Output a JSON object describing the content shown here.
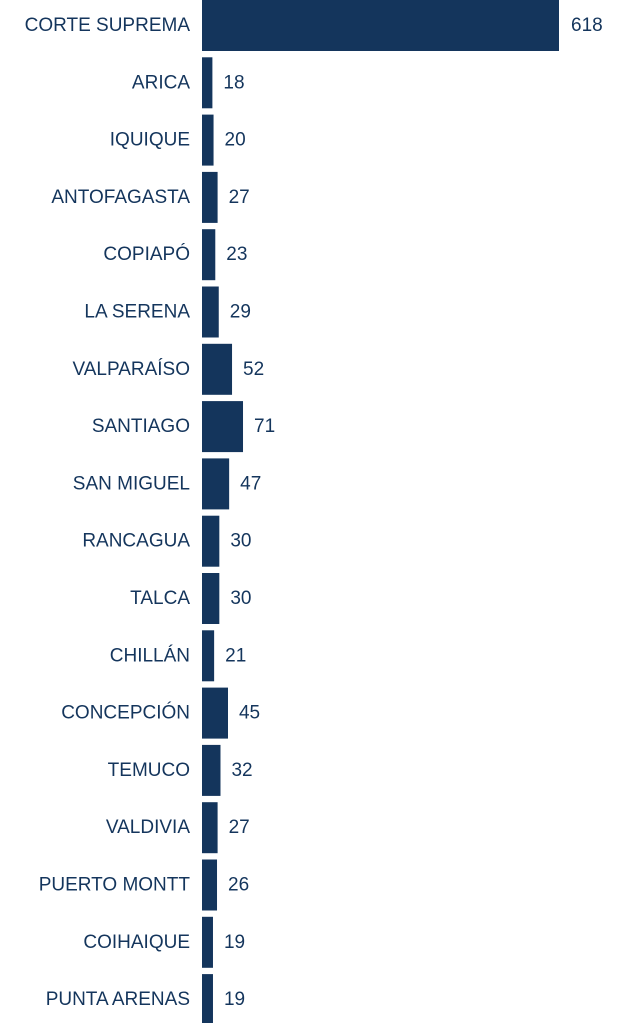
{
  "chart_data": {
    "type": "bar",
    "orientation": "horizontal",
    "categories": [
      "CORTE SUPREMA",
      "ARICA",
      "IQUIQUE",
      "ANTOFAGASTA",
      "COPIAPÓ",
      "LA SERENA",
      "VALPARAÍSO",
      "SANTIAGO",
      "SAN MIGUEL",
      "RANCAGUA",
      "TALCA",
      "CHILLÁN",
      "CONCEPCIÓN",
      "TEMUCO",
      "VALDIVIA",
      "PUERTO MONTT",
      "COIHAIQUE",
      "PUNTA ARENAS"
    ],
    "values": [
      618,
      18,
      20,
      27,
      23,
      29,
      52,
      71,
      47,
      30,
      30,
      21,
      45,
      32,
      27,
      26,
      19,
      19
    ],
    "title": "",
    "xlabel": "",
    "ylabel": "",
    "xlim": [
      0,
      618
    ],
    "grid": false,
    "legend": "none",
    "colors": {
      "bar": "#14355c",
      "text": "#14355c",
      "background": "#ffffff"
    }
  }
}
